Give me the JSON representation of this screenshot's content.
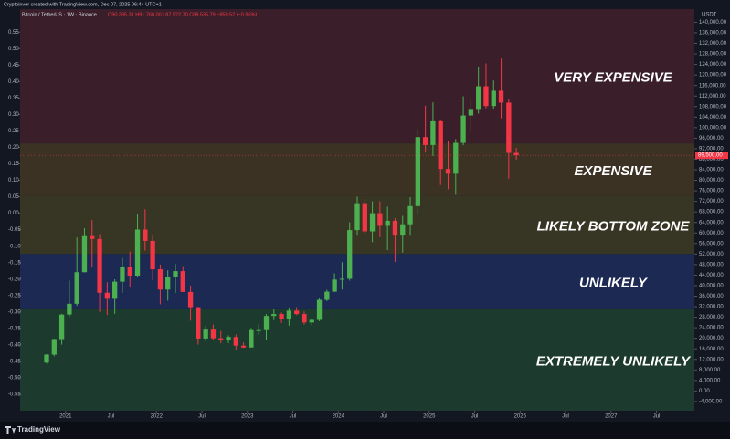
{
  "header": "Cryptoinver created with TradingView.com, Dec 07, 2025 06:44 UTC+1",
  "brand": "TradingView",
  "chart_data": {
    "type": "candlestick",
    "title": "Bitcoin / TetherUS · 1W · Binance",
    "subtitle": "O90,395.31 H91,760.00 L87,522.70 C89,535.79 −859.52 (−0.95%)",
    "y_axis_label": "USDT",
    "up_color": "#4caf50",
    "down_color": "#f23645",
    "x": [
      "2020-10",
      "2020-11",
      "2020-12",
      "2021-01",
      "2021-02",
      "2021-03",
      "2021-04",
      "2021-05",
      "2021-06",
      "2021-07",
      "2021-08",
      "2021-09",
      "2021-10",
      "2021-11",
      "2021-12",
      "2022-01",
      "2022-02",
      "2022-03",
      "2022-04",
      "2022-05",
      "2022-06",
      "2022-07",
      "2022-08",
      "2022-09",
      "2022-10",
      "2022-11",
      "2022-12",
      "2023-01",
      "2023-02",
      "2023-03",
      "2023-04",
      "2023-05",
      "2023-06",
      "2023-07",
      "2023-08",
      "2023-09",
      "2023-10",
      "2023-11",
      "2023-12",
      "2024-01",
      "2024-02",
      "2024-03",
      "2024-04",
      "2024-05",
      "2024-06",
      "2024-07",
      "2024-08",
      "2024-09",
      "2024-10",
      "2024-11",
      "2024-12",
      "2025-01",
      "2025-02",
      "2025-03",
      "2025-04",
      "2025-05",
      "2025-06",
      "2025-07",
      "2025-08",
      "2025-09",
      "2025-10",
      "2025-11",
      "2025-12"
    ],
    "open": [
      10800,
      13800,
      19700,
      29000,
      33100,
      45100,
      58800,
      57700,
      37300,
      35000,
      41500,
      47100,
      43800,
      61300,
      57000,
      46200,
      38500,
      43200,
      45500,
      37600,
      31800,
      19900,
      23300,
      20000,
      19400,
      20500,
      17200,
      16500,
      23100,
      23100,
      28500,
      29200,
      27200,
      30500,
      29200,
      26000,
      27000,
      34600,
      37700,
      42300,
      42600,
      61100,
      71300,
      60600,
      67500,
      62700,
      64600,
      59000,
      63300,
      70200,
      96400,
      93400,
      102400,
      84300,
      82500,
      94200,
      104600,
      107100,
      115700,
      108200,
      114000,
      109500,
      90400
    ],
    "high": [
      14000,
      19900,
      29300,
      41900,
      58300,
      61800,
      64900,
      59600,
      41300,
      42400,
      50500,
      52900,
      67000,
      69000,
      59000,
      48000,
      45800,
      48200,
      47400,
      40000,
      31900,
      24700,
      25200,
      22800,
      21100,
      21500,
      18400,
      23900,
      25300,
      29200,
      31000,
      29800,
      31400,
      31800,
      30200,
      27500,
      35200,
      38400,
      44700,
      48900,
      64000,
      73800,
      72800,
      72000,
      72000,
      70000,
      65600,
      66500,
      73600,
      99600,
      108300,
      109600,
      102700,
      95000,
      95700,
      111900,
      110600,
      123200,
      124400,
      117900,
      126200,
      111000,
      92300
    ],
    "low": [
      10400,
      13200,
      17600,
      28100,
      32300,
      45000,
      47000,
      30000,
      28800,
      29300,
      37300,
      39600,
      43300,
      53300,
      42000,
      32900,
      34300,
      37200,
      37600,
      26700,
      17600,
      18800,
      19500,
      18100,
      18200,
      15500,
      16300,
      16500,
      21300,
      19500,
      26900,
      25800,
      24800,
      28800,
      25200,
      24900,
      26500,
      34100,
      37600,
      38500,
      41900,
      59000,
      59600,
      56500,
      58400,
      53500,
      49000,
      52500,
      58900,
      66800,
      90500,
      89200,
      78200,
      76600,
      74500,
      93300,
      98200,
      105300,
      107300,
      107200,
      103500,
      80600,
      87800
    ],
    "close": [
      13800,
      19700,
      29000,
      33100,
      45100,
      58800,
      57700,
      37300,
      35000,
      41500,
      47100,
      43800,
      61300,
      57000,
      46200,
      38500,
      43200,
      45500,
      37600,
      31800,
      19900,
      23300,
      20000,
      19400,
      20500,
      17200,
      16500,
      23100,
      23100,
      28500,
      29200,
      27200,
      30500,
      29200,
      26000,
      27000,
      34600,
      37700,
      42300,
      42600,
      61100,
      71300,
      60600,
      67500,
      62700,
      64600,
      59000,
      63300,
      70200,
      96400,
      93400,
      102400,
      84300,
      82500,
      94200,
      104600,
      107100,
      115700,
      108200,
      114000,
      109500,
      90400,
      89500
    ],
    "last_label": "89,500.00",
    "xlim": [
      "2020-07",
      "2027-12"
    ],
    "xticks": [
      {
        "value": "2021-01",
        "label": "2021"
      },
      {
        "value": "2021-07",
        "label": "Jul"
      },
      {
        "value": "2022-01",
        "label": "2022"
      },
      {
        "value": "2022-07",
        "label": "Jul"
      },
      {
        "value": "2023-01",
        "label": "2023"
      },
      {
        "value": "2023-07",
        "label": "Jul"
      },
      {
        "value": "2024-01",
        "label": "2024"
      },
      {
        "value": "2024-07",
        "label": "Jul"
      },
      {
        "value": "2025-01",
        "label": "2025"
      },
      {
        "value": "2025-07",
        "label": "Jul"
      },
      {
        "value": "2026-01",
        "label": "2026"
      },
      {
        "value": "2026-07",
        "label": "Jul"
      },
      {
        "value": "2027-01",
        "label": "2027"
      },
      {
        "value": "2027-07",
        "label": "Jul"
      }
    ],
    "ylim": [
      -7500,
      145000
    ],
    "yticks": [
      {
        "value": 140000,
        "label": "140,000.00"
      },
      {
        "value": 136000,
        "label": "136,000.00"
      },
      {
        "value": 132000,
        "label": "132,000.00"
      },
      {
        "value": 128000,
        "label": "128,000.00"
      },
      {
        "value": 124000,
        "label": "124,000.00"
      },
      {
        "value": 120000,
        "label": "120,000.00"
      },
      {
        "value": 116000,
        "label": "116,000.00"
      },
      {
        "value": 112000,
        "label": "112,000.00"
      },
      {
        "value": 108000,
        "label": "108,000.00"
      },
      {
        "value": 104000,
        "label": "104,000.00"
      },
      {
        "value": 100000,
        "label": "100,000.00"
      },
      {
        "value": 96000,
        "label": "96,000.00"
      },
      {
        "value": 92000,
        "label": "92,000.00"
      },
      {
        "value": 88000,
        "label": "88,000.00"
      },
      {
        "value": 84000,
        "label": "84,000.00"
      },
      {
        "value": 80000,
        "label": "80,000.00"
      },
      {
        "value": 76000,
        "label": "76,000.00"
      },
      {
        "value": 72000,
        "label": "72,000.00"
      },
      {
        "value": 68000,
        "label": "68,000.00"
      },
      {
        "value": 64000,
        "label": "64,000.00"
      },
      {
        "value": 60000,
        "label": "60,000.00"
      },
      {
        "value": 56000,
        "label": "56,000.00"
      },
      {
        "value": 52000,
        "label": "52,000.00"
      },
      {
        "value": 48000,
        "label": "48,000.00"
      },
      {
        "value": 44000,
        "label": "44,000.00"
      },
      {
        "value": 40000,
        "label": "40,000.00"
      },
      {
        "value": 36000,
        "label": "36,000.00"
      },
      {
        "value": 32000,
        "label": "32,000.00"
      },
      {
        "value": 28000,
        "label": "28,000.00"
      },
      {
        "value": 24000,
        "label": "24,000.00"
      },
      {
        "value": 20000,
        "label": "20,000.00"
      },
      {
        "value": 16000,
        "label": "16,000.00"
      },
      {
        "value": 12000,
        "label": "12,000.00"
      },
      {
        "value": 8000,
        "label": "8,000.00"
      },
      {
        "value": 4000,
        "label": "4,000.00"
      },
      {
        "value": 0,
        "label": "0.00"
      },
      {
        "value": -4000,
        "label": "-4,000.00"
      }
    ],
    "y2lim": [
      -0.6,
      0.62
    ],
    "y2ticks": [
      0.55,
      {
        "value": 0.5,
        "label": "0.50"
      },
      0.45,
      {
        "value": 0.4,
        "label": "0.40"
      },
      0.35,
      {
        "value": 0.3,
        "label": "0.30"
      },
      0.25,
      {
        "value": 0.2,
        "label": "0.20"
      },
      0.15,
      {
        "value": 0.1,
        "label": "0.10"
      },
      0.05,
      {
        "value": 0,
        "label": "0.00"
      },
      -0.05,
      {
        "value": -0.1,
        "label": "-0.10"
      },
      -0.15,
      {
        "value": -0.2,
        "label": "-0.20"
      },
      -0.25,
      {
        "value": -0.3,
        "label": "-0.30"
      },
      -0.35,
      {
        "value": -0.4,
        "label": "-0.40"
      },
      -0.45,
      {
        "value": -0.5,
        "label": "-0.50"
      },
      -0.55
    ],
    "zones": [
      {
        "label": "VERY EXPENSIVE",
        "from": 94000,
        "to": 145000,
        "color": "#3a1f2a"
      },
      {
        "label": "EXPENSIVE",
        "from": 74000,
        "to": 94000,
        "color": "#3b3224"
      },
      {
        "label": "LIKELY BOTTOM ZONE",
        "from": 52000,
        "to": 74000,
        "color": "#373625"
      },
      {
        "label": "UNLIKELY",
        "from": 31000,
        "to": 52000,
        "color": "#1c2953"
      },
      {
        "label": "EXTREMELY UNLIKELY",
        "from": -7500,
        "to": 31000,
        "color": "#1c3a2d"
      }
    ]
  }
}
